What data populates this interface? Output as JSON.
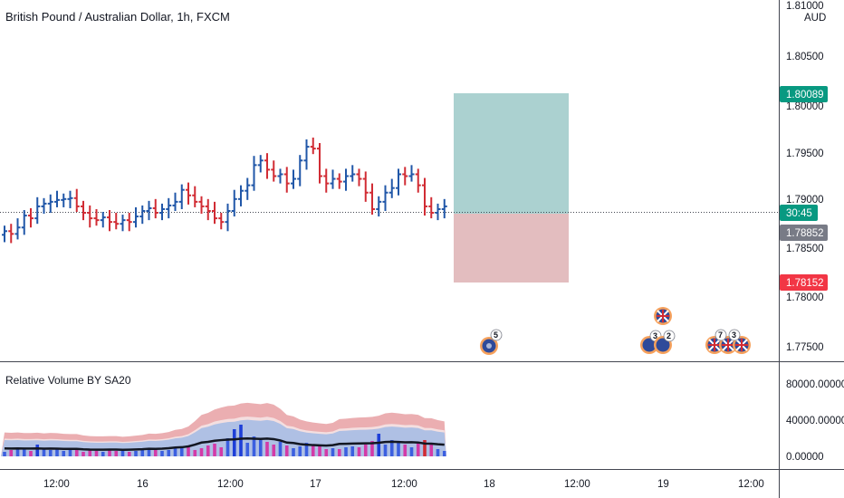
{
  "header": {
    "symbol_title": "British Pound / Australian Dollar, 1h, FXCM",
    "indicator_title": "Relative Volume BY SA20"
  },
  "price_axis": {
    "currency": "AUD",
    "ticks": [
      "1.81000",
      "1.80500",
      "1.80000",
      "1.79500",
      "1.79000",
      "1.78500",
      "1.78000",
      "1.77500"
    ]
  },
  "badges": {
    "take_profit": "1.80089",
    "countdown": "30:45",
    "last_price": "1.78852",
    "stop_loss": "1.78152"
  },
  "volume_axis": {
    "ticks": [
      "80000.00000",
      "40000.00000",
      "0.00000"
    ]
  },
  "time_axis": {
    "ticks": [
      "12:00",
      "16",
      "12:00",
      "17",
      "12:00",
      "18",
      "12:00",
      "19",
      "12:00"
    ]
  },
  "events": {
    "au_single": "5",
    "au_pair_a": "3",
    "au_pair_b": "2",
    "gb_a": "7",
    "gb_b": "3"
  },
  "colors": {
    "up": "#2157a8",
    "down": "#d12c34",
    "tp": "#089981",
    "sl": "#f23645",
    "last": "#787b86",
    "profit_zone": "#a6cfce",
    "loss_zone": "#e2b9bc"
  },
  "chart_data": {
    "type": "ohlc",
    "timeframe": "1h",
    "y_range": [
      1.773,
      1.8105
    ],
    "long_position": {
      "entry": 1.7885,
      "take_profit": 1.80089,
      "stop_loss": 1.78152
    },
    "close_series": [
      1.7858,
      1.7855,
      1.7862,
      1.7875,
      1.7872,
      1.7885,
      1.7888,
      1.789,
      1.7892,
      1.7893,
      1.7894,
      1.7885,
      1.7878,
      1.7872,
      1.787,
      1.7873,
      1.7868,
      1.7866,
      1.787,
      1.7868,
      1.7874,
      1.788,
      1.7883,
      1.7878,
      1.7882,
      1.7886,
      1.789,
      1.7903,
      1.7897,
      1.789,
      1.7885,
      1.788,
      1.7872,
      1.7868,
      1.788,
      1.7893,
      1.7902,
      1.7908,
      1.793,
      1.7935,
      1.7925,
      1.7918,
      1.792,
      1.791,
      1.7915,
      1.7935,
      1.795,
      1.7948,
      1.7918,
      1.791,
      1.7915,
      1.7912,
      1.7918,
      1.792,
      1.7915,
      1.79,
      1.7882,
      1.789,
      1.79,
      1.7905,
      1.792,
      1.7918,
      1.792,
      1.7908,
      1.7885,
      1.7878,
      1.7882,
      1.7885
    ],
    "volume_series": [
      5000,
      7000,
      8000,
      9000,
      6000,
      13000,
      8000,
      7000,
      9000,
      6000,
      8000,
      9000,
      5000,
      7000,
      6000,
      5000,
      8000,
      6000,
      7000,
      5000,
      6000,
      9000,
      7000,
      8000,
      6000,
      7000,
      10000,
      9000,
      11000,
      7000,
      9000,
      12000,
      14000,
      10000,
      20000,
      30000,
      35000,
      15000,
      22000,
      18000,
      16000,
      13000,
      16000,
      12000,
      9000,
      11000,
      15000,
      13000,
      12000,
      8000,
      9000,
      8000,
      10000,
      11000,
      10000,
      13000,
      17000,
      25000,
      13000,
      18000,
      15000,
      13000,
      10000,
      14000,
      18000,
      13000,
      8000,
      6000
    ]
  }
}
